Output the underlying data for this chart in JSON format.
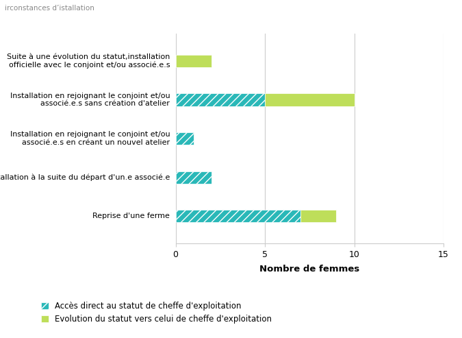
{
  "categories": [
    "Suite à une évolution du statut,installation\nofficielle avec le conjoint et/ou associé.e.s",
    "Installation en rejoignant le conjoint et/ou\nassocié.e.s sans création d'atelier",
    "Installation en rejoignant le conjoint et/ou\nassocié.e.s en créant un nouvel atelier",
    "Installation à la suite du départ d'un.e associé.e",
    "Reprise d'une ferme"
  ],
  "direct_access": [
    0,
    5,
    1,
    2,
    7
  ],
  "evolution": [
    2,
    5,
    0,
    0,
    2
  ],
  "color_direct": "#2ab8b8",
  "color_evolution": "#bede5a",
  "hatch_direct": "///",
  "hatch_evolution": "",
  "xlabel": "Nombre de femmes",
  "xlim": [
    0,
    15
  ],
  "xticks": [
    0,
    5,
    10,
    15
  ],
  "legend_direct": "Accès direct au statut de cheffe d'exploitation",
  "legend_evolution": "Evolution du statut vers celui de cheffe d'exploitation",
  "background_color": "#ffffff",
  "title_text": "irconstances d’istallation",
  "bar_height": 0.32,
  "figure_width": 6.75,
  "figure_height": 4.93,
  "dpi": 100
}
